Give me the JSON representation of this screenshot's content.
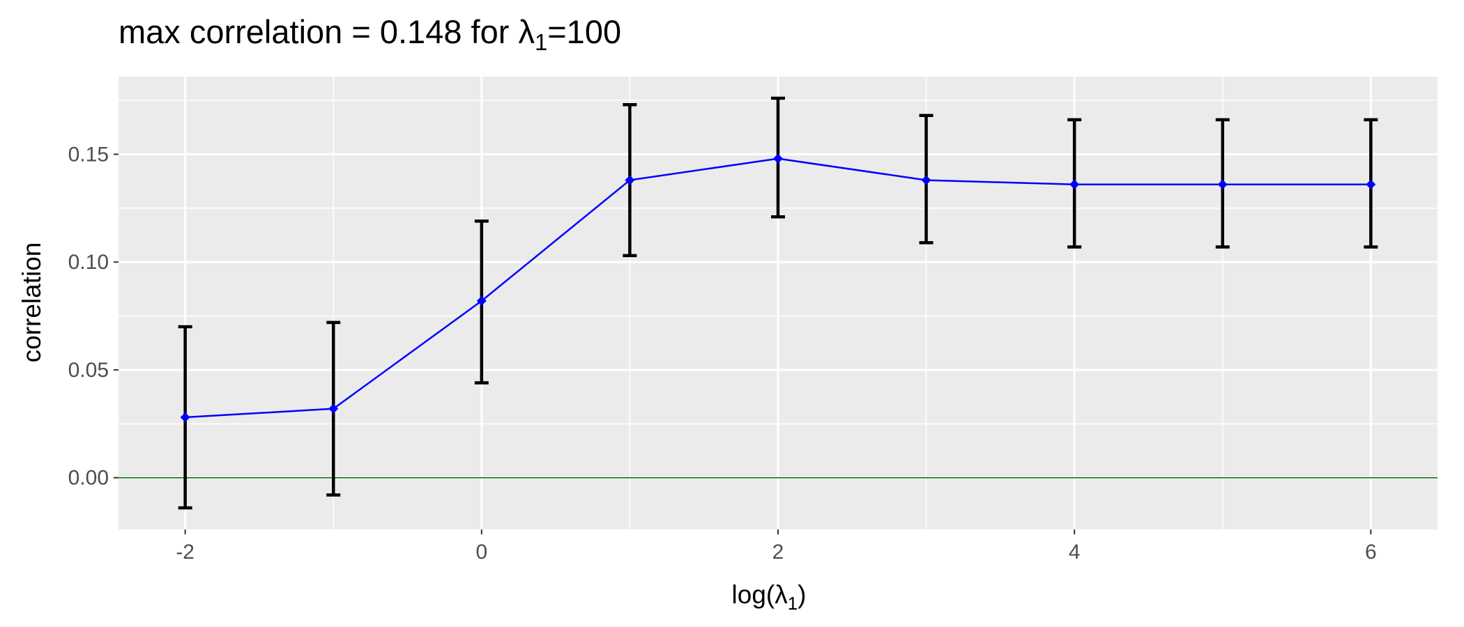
{
  "chart_data": {
    "type": "line",
    "title": {
      "prefix": "max correlation = 0.148  for  ",
      "symbol": "λ",
      "subscript": "1",
      "suffix": "=100"
    },
    "xlabel": {
      "prefix": "log(",
      "symbol": "λ",
      "subscript": "1",
      "suffix": ")"
    },
    "ylabel": "correlation",
    "x": [
      -2,
      -1,
      0,
      1,
      2,
      3,
      4,
      5,
      6
    ],
    "series": [
      {
        "values": [
          0.028,
          0.032,
          0.082,
          0.138,
          0.148,
          0.138,
          0.136,
          0.136,
          0.136
        ],
        "lower": [
          -0.014,
          -0.008,
          0.044,
          0.103,
          0.121,
          0.109,
          0.107,
          0.107,
          0.107
        ],
        "upper": [
          0.07,
          0.072,
          0.119,
          0.173,
          0.176,
          0.168,
          0.166,
          0.166,
          0.166
        ],
        "color": "#0000ff",
        "errorbar_color": "#000000"
      }
    ],
    "reference_line": {
      "y": 0,
      "color": "#006400"
    },
    "xlim": [
      -2.45,
      6.45
    ],
    "ylim": [
      -0.024,
      0.186
    ],
    "x_ticks": [
      -2,
      0,
      2,
      4,
      6
    ],
    "x_tick_labels": [
      "-2",
      "0",
      "2",
      "4",
      "6"
    ],
    "x_minor_ticks": [
      -1,
      1,
      3,
      5
    ],
    "y_ticks": [
      0,
      0.05,
      0.1,
      0.15
    ],
    "y_tick_labels": [
      "0.00",
      "0.05",
      "0.10",
      "0.15"
    ],
    "y_minor_ticks": [
      -0.025,
      0.025,
      0.075,
      0.125,
      0.175
    ],
    "grid": true,
    "legend": "none",
    "panel_color": "#ebebeb",
    "grid_color": "#ffffff"
  }
}
